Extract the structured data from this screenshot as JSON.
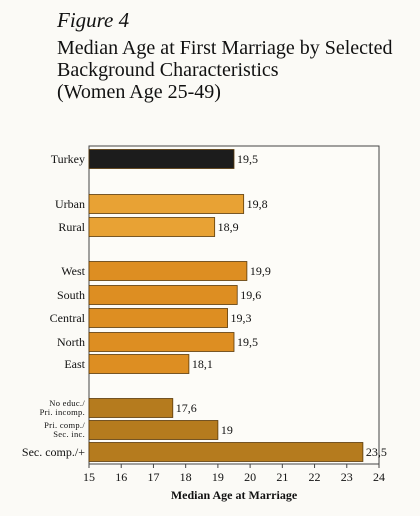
{
  "figure_label": "Figure 4",
  "title_lines": [
    "Median  Age at First Marriage by Selected",
    "Background Characteristics",
    "(Women Age 25-49)"
  ],
  "chart_data": {
    "type": "bar",
    "orientation": "horizontal",
    "title": "Median  Age at First Marriage by Selected Background Characteristics (Women Age 25-49)",
    "xlabel": "Median Age at Marriage",
    "ylabel": "",
    "xlim": [
      15,
      24
    ],
    "xticks": [
      15,
      16,
      17,
      18,
      19,
      20,
      21,
      22,
      23,
      24
    ],
    "grid": false,
    "legend": "none",
    "groups": [
      {
        "color": "#1c1c1c",
        "bars": [
          {
            "category": "Turkey",
            "value": 19.5,
            "value_label": "19,5"
          }
        ]
      },
      {
        "color": "#e8a234",
        "bars": [
          {
            "category": "Urban",
            "value": 19.8,
            "value_label": "19,8"
          },
          {
            "category": "Rural",
            "value": 18.9,
            "value_label": "18,9"
          }
        ]
      },
      {
        "color": "#dd8e22",
        "bars": [
          {
            "category": "West",
            "value": 19.9,
            "value_label": "19,9"
          },
          {
            "category": "South",
            "value": 19.6,
            "value_label": "19,6"
          },
          {
            "category": "Central",
            "value": 19.3,
            "value_label": "19,3"
          },
          {
            "category": "North",
            "value": 19.5,
            "value_label": "19,5"
          },
          {
            "category": "East",
            "value": 18.1,
            "value_label": "18,1"
          }
        ]
      },
      {
        "color": "#b57b1e",
        "bars": [
          {
            "category": "No educ./ Pri. incomp.",
            "value": 17.6,
            "value_label": "17,6"
          },
          {
            "category": "Pri. comp./ Sec. inc.",
            "value": 19.0,
            "value_label": "19"
          },
          {
            "category": "Sec. comp./+",
            "value": 23.5,
            "value_label": "23,5"
          }
        ]
      }
    ]
  }
}
